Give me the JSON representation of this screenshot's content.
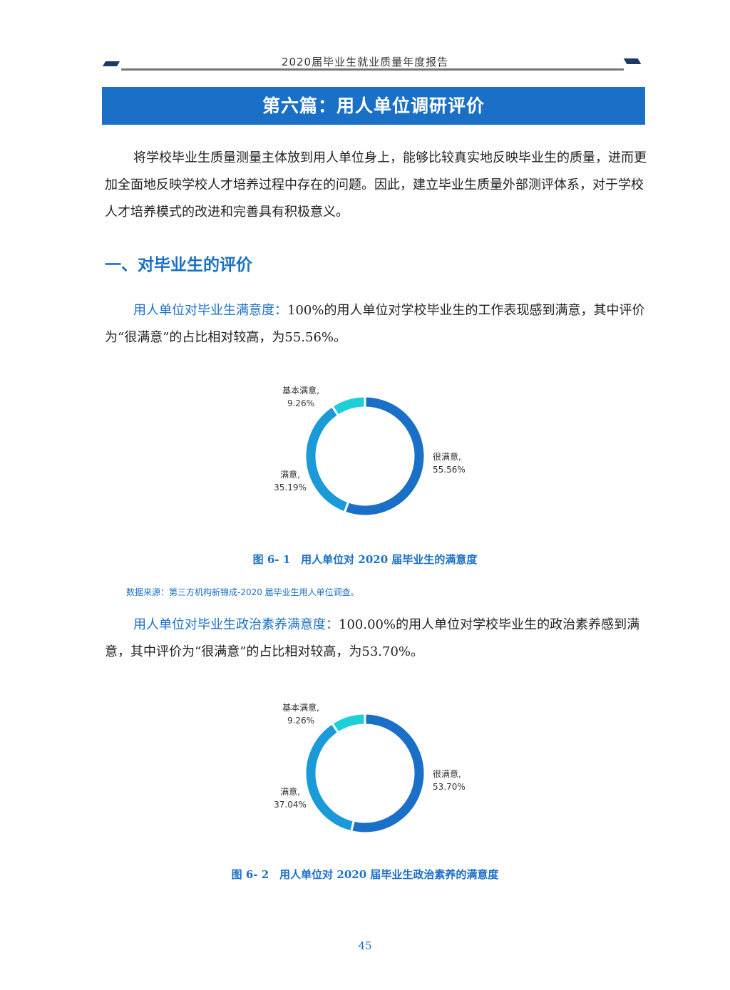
{
  "header": {
    "title": "2020届毕业生就业质量年度报告"
  },
  "banner": {
    "title": "第六篇：用人单位调研评价"
  },
  "intro": "将学校毕业生质量测量主体放到用人单位身上，能够比较真实地反映毕业生的质量，进而更加全面地反映学校人才培养过程中存在的问题。因此，建立毕业生质量外部测评体系，对于学校人才培养模式的改进和完善具有积极意义。",
  "section1": {
    "title": "一、对毕业生的评价"
  },
  "p1": {
    "lead": "用人单位对毕业生满意度：",
    "text": "100%的用人单位对学校毕业生的工作表现感到满意，其中评价为“很满意”的占比相对较高，为55.56%。"
  },
  "p2": {
    "lead": "用人单位对毕业生政治素养满意度：",
    "text": "100.00%的用人单位对学校毕业生的政治素养感到满意，其中评价为“很满意”的占比相对较高，为53.70%。"
  },
  "source": "数据来源：第三方机构新锦成-2020 届毕业生用人单位调查。",
  "page_number": "45",
  "chart_data": [
    {
      "type": "pie",
      "donut": true,
      "title": "图 6- 1　用人单位对 2020 届毕业生的满意度",
      "categories": [
        "很满意",
        "满意",
        "基本满意"
      ],
      "values": [
        55.56,
        35.19,
        9.26
      ],
      "labels": [
        [
          "很满意,",
          "55.56%"
        ],
        [
          "满意,",
          "35.19%"
        ],
        [
          "基本满意,",
          "9.26%"
        ]
      ],
      "colors": [
        "#1a6fc7",
        "#1a9ad9",
        "#1ccfd9"
      ]
    },
    {
      "type": "pie",
      "donut": true,
      "title": "图 6- 2　用人单位对 2020 届毕业生政治素养的满意度",
      "categories": [
        "很满意",
        "满意",
        "基本满意"
      ],
      "values": [
        53.7,
        37.04,
        9.26
      ],
      "labels": [
        [
          "很满意,",
          "53.70%"
        ],
        [
          "满意,",
          "37.04%"
        ],
        [
          "基本满意,",
          "9.26%"
        ]
      ],
      "colors": [
        "#1a6fc7",
        "#1a9ad9",
        "#1ccfd9"
      ]
    }
  ]
}
